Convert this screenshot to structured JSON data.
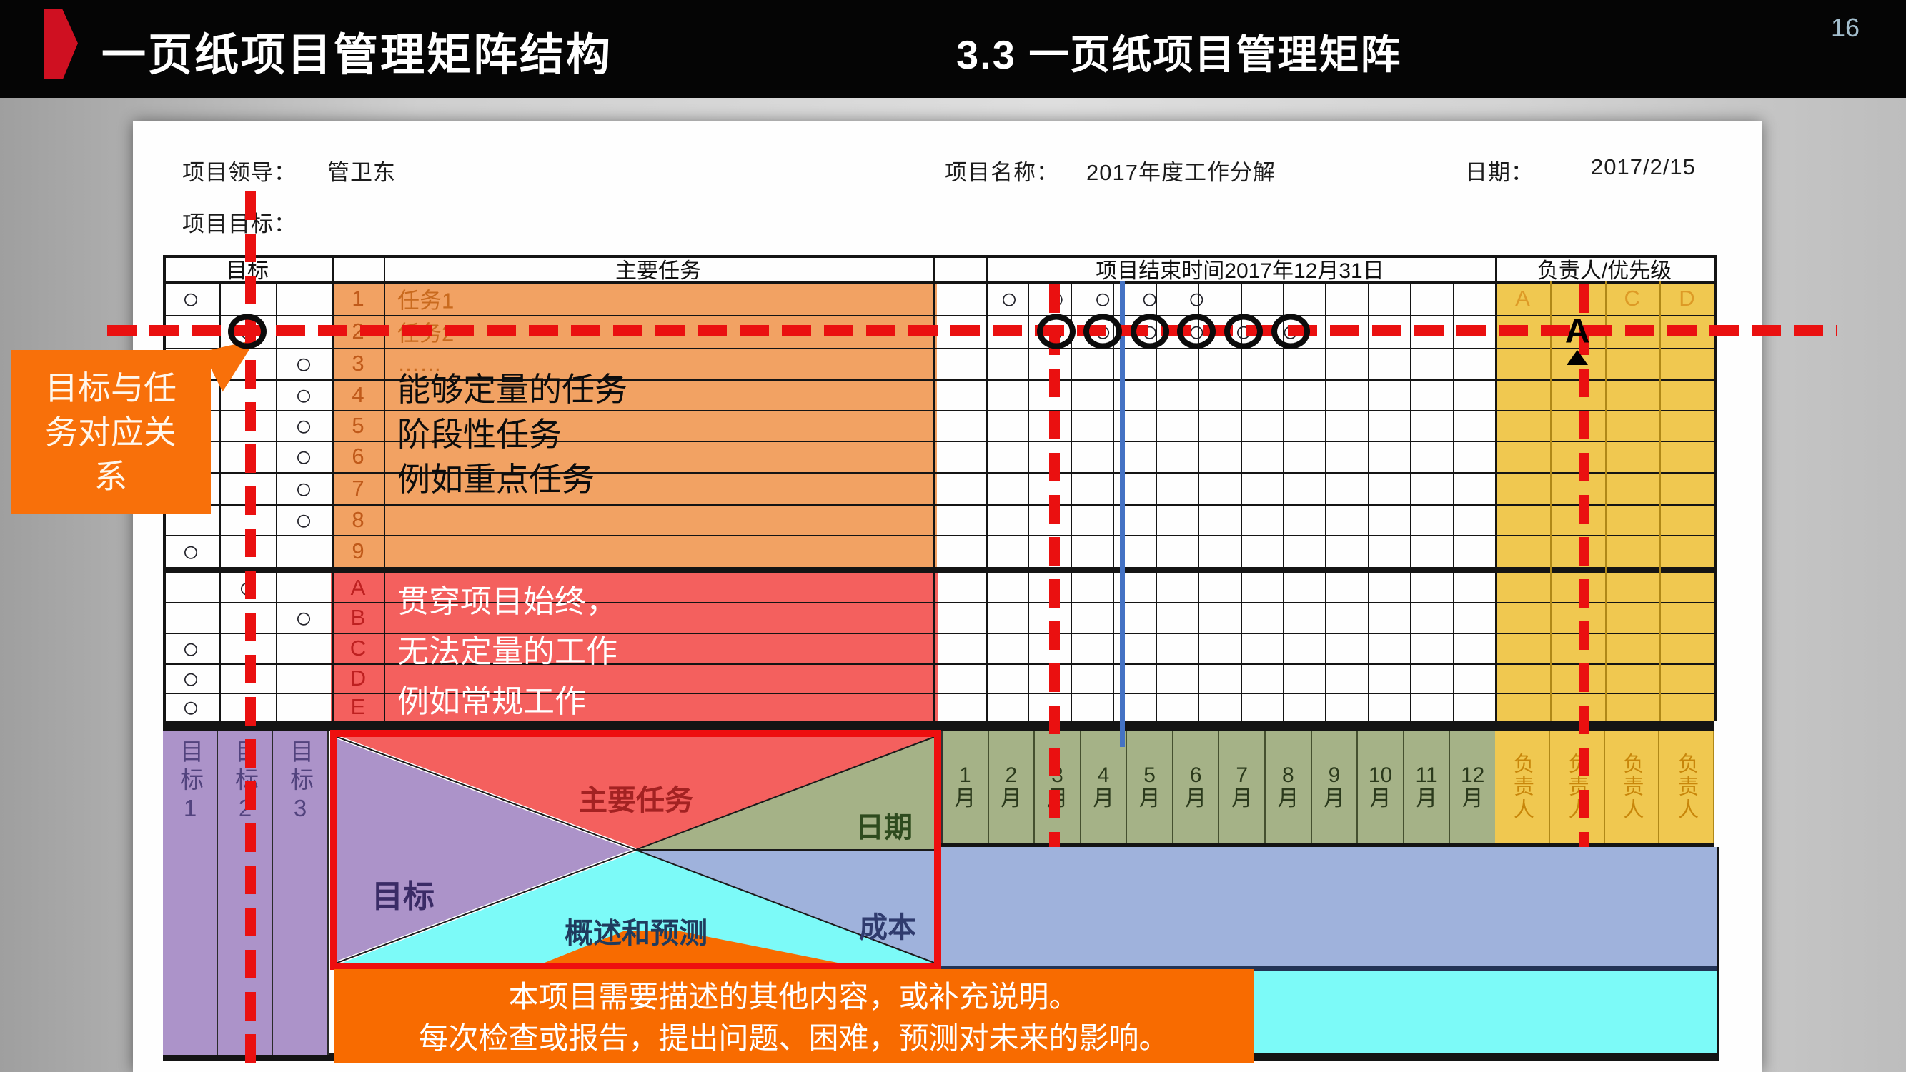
{
  "slide": {
    "title_left": "一页纸项目管理矩阵结构",
    "title_right": "3.3 一页纸项目管理矩阵",
    "page_number": "16"
  },
  "info": {
    "leader_label": "项目领导：",
    "leader_value": "管卫东",
    "project_label": "项目名称：",
    "project_value": "2017年度工作分解",
    "date_label": "日期：",
    "date_value": "2017/2/15",
    "goal_label": "项目目标："
  },
  "matrix": {
    "headers": {
      "goal": "目标",
      "tasks": "主要任务",
      "timeline": "项目结束时间2017年12月31日",
      "owner": "负责人/优先级"
    },
    "rows": [
      {
        "label": "1",
        "goal": 1,
        "task": "任务1",
        "months": [
          1,
          2,
          3,
          4,
          5
        ],
        "owners": [
          "A",
          "",
          "C",
          "D"
        ]
      },
      {
        "label": "2",
        "goal": 2,
        "task": "任务2",
        "months": [
          2,
          3,
          4,
          5,
          6,
          7
        ],
        "ringed": true,
        "owner_bold": "A"
      },
      {
        "label": "3",
        "goal": 3,
        "task": "……"
      },
      {
        "label": "4",
        "goal": 3
      },
      {
        "label": "5",
        "goal": 3
      },
      {
        "label": "6",
        "goal": 3
      },
      {
        "label": "7",
        "goal": 3
      },
      {
        "label": "8",
        "goal": 3
      },
      {
        "label": "9",
        "goal": 1
      },
      {
        "label": "A",
        "goal": 2
      },
      {
        "label": "B",
        "goal": 3
      },
      {
        "label": "C",
        "goal": 1
      },
      {
        "label": "D",
        "goal": 1
      },
      {
        "label": "E",
        "goal": 1
      }
    ],
    "quant_note": "能够定量的任务\n阶段性任务\n例如重点任务",
    "routine_note": "贯穿项目始终，\n无法定量的工作\n例如常规工作",
    "circle_glyph": "○"
  },
  "callout": {
    "text": "目标与任务对应关系"
  },
  "bottom": {
    "goal_cols": [
      "目标1",
      "目标2",
      "目标3"
    ],
    "months": [
      "1",
      "2",
      "3",
      "4",
      "5",
      "6",
      "7",
      "8",
      "9",
      "10",
      "11",
      "12"
    ],
    "month_unit": "月",
    "owner_label": "负责人",
    "diagram": {
      "goal": "目标",
      "tasks": "主要任务",
      "date": "日期",
      "overview": "概述和预测",
      "cost": "成本"
    }
  },
  "banner": {
    "line1": "本项目需要描述的其他内容，或补充说明。",
    "line2": "每次检查或报告，提出问题、困难，预测对未来的影响。"
  },
  "colors": {
    "task_block": "#f2a263",
    "routine_block": "#f4605e",
    "owner_block": "#f0c850",
    "month_green": "#a5b287",
    "goal_purple": "#ac93c9",
    "cost_blue": "#9fb2dc",
    "overview_cyan": "#7cfaf8",
    "annotation_orange": "#f8700a",
    "annotation_red": "#ea1010",
    "timeline_blue": "#4472c4",
    "diagram_border": "#ee0f0f"
  }
}
